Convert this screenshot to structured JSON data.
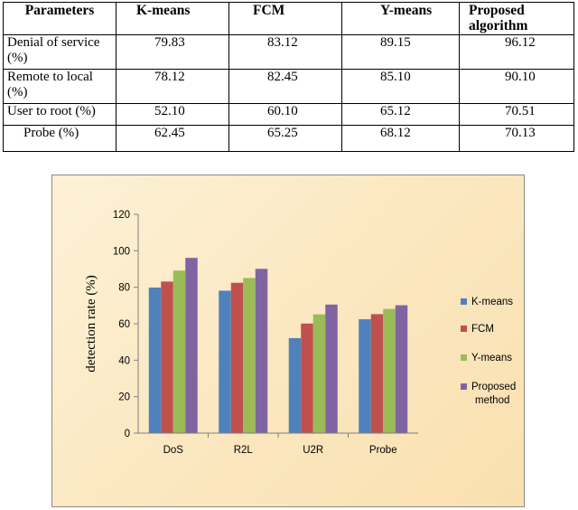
{
  "table": {
    "headers": [
      "Parameters",
      "K-means",
      "FCM",
      "Y-means",
      "Proposed algorithm"
    ],
    "rows": [
      {
        "label": "Denial of service (%)",
        "values": [
          "79.83",
          "83.12",
          "89.15",
          "96.12"
        ]
      },
      {
        "label": "Remote to local (%)",
        "values": [
          "78.12",
          "82.45",
          "85.10",
          "90.10"
        ]
      },
      {
        "label": "User to root (%)",
        "values": [
          "52.10",
          "60.10",
          "65.12",
          "70.51"
        ]
      },
      {
        "label": "Probe (%)",
        "values": [
          "62.45",
          "65.25",
          "68.12",
          "70.13"
        ]
      }
    ]
  },
  "chart_data": {
    "type": "bar",
    "categories": [
      "DoS",
      "R2L",
      "U2R",
      "Probe"
    ],
    "series": [
      {
        "name": "K-means",
        "values": [
          79.83,
          78.12,
          52.1,
          62.45
        ]
      },
      {
        "name": "FCM",
        "values": [
          83.12,
          82.45,
          60.1,
          65.25
        ]
      },
      {
        "name": "Y-means",
        "values": [
          89.15,
          85.1,
          65.12,
          68.12
        ]
      },
      {
        "name": "Proposed method",
        "values": [
          96.12,
          90.1,
          70.51,
          70.13
        ]
      }
    ],
    "colors": [
      "#4f81bd",
      "#c0504d",
      "#9bbb59",
      "#8064a2"
    ],
    "title": "",
    "xlabel": "",
    "ylabel": "detection rate (%)",
    "ylim": [
      0,
      120
    ],
    "yticks": [
      0,
      20,
      40,
      60,
      80,
      100,
      120
    ],
    "grid": false,
    "legend_position": "right"
  }
}
